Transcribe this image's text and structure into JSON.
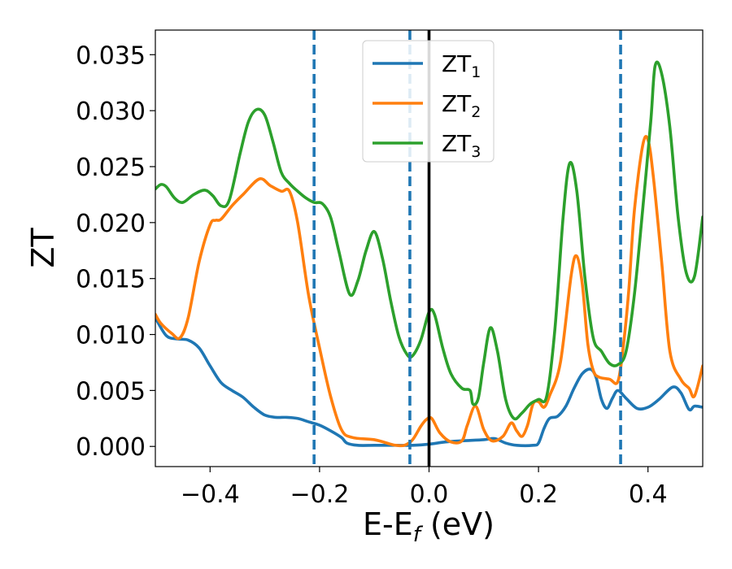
{
  "chart_data": {
    "type": "line",
    "xlabel_main": "E-E",
    "xlabel_sub": "f",
    "xlabel_tail": " (eV)",
    "ylabel": "ZT",
    "xlim": [
      -0.5,
      0.5
    ],
    "ylim": [
      -0.0018,
      0.0372
    ],
    "xticks": [
      -0.4,
      -0.2,
      0.0,
      0.2,
      0.4
    ],
    "xtick_labels": [
      "−0.4",
      "−0.2",
      "0.0",
      "0.2",
      "0.4"
    ],
    "yticks": [
      0.0,
      0.005,
      0.01,
      0.015,
      0.02,
      0.025,
      0.03,
      0.035
    ],
    "ytick_labels": [
      "0.000",
      "0.005",
      "0.010",
      "0.015",
      "0.020",
      "0.025",
      "0.030",
      "0.035"
    ],
    "grid": false,
    "legend_position": "top-center",
    "vlines_dashed": [
      -0.21,
      -0.035,
      0.35
    ],
    "vline_dashed_color": "#1f77b4",
    "vline_solid": 0.0,
    "vline_solid_color": "#000000",
    "series": [
      {
        "name_main": "ZT",
        "name_sub": "1",
        "color": "#1f77b4",
        "x": [
          -0.5,
          -0.48,
          -0.46,
          -0.44,
          -0.42,
          -0.4,
          -0.38,
          -0.36,
          -0.34,
          -0.32,
          -0.3,
          -0.28,
          -0.26,
          -0.24,
          -0.22,
          -0.2,
          -0.18,
          -0.16,
          -0.15,
          -0.13,
          -0.1,
          -0.06,
          -0.03,
          0.0,
          0.03,
          0.06,
          0.1,
          0.12,
          0.14,
          0.16,
          0.19,
          0.2,
          0.21,
          0.22,
          0.235,
          0.25,
          0.265,
          0.28,
          0.295,
          0.305,
          0.315,
          0.325,
          0.335,
          0.345,
          0.36,
          0.38,
          0.4,
          0.42,
          0.445,
          0.46,
          0.475,
          0.485,
          0.5
        ],
        "y": [
          0.0115,
          0.0099,
          0.0096,
          0.0095,
          0.0088,
          0.0072,
          0.0057,
          0.005,
          0.0044,
          0.0035,
          0.0028,
          0.0026,
          0.0026,
          0.0025,
          0.0022,
          0.0019,
          0.0014,
          0.0008,
          0.0003,
          0.0001,
          0.0001,
          0.0001,
          0.0001,
          0.0002,
          0.0004,
          0.0005,
          0.0006,
          0.0007,
          0.0003,
          0.0001,
          0.0001,
          0.0003,
          0.0016,
          0.0025,
          0.0027,
          0.0036,
          0.0052,
          0.0065,
          0.0069,
          0.0062,
          0.0042,
          0.0034,
          0.0043,
          0.005,
          0.0043,
          0.0034,
          0.0035,
          0.0042,
          0.0053,
          0.0048,
          0.0033,
          0.0036,
          0.0035
        ]
      },
      {
        "name_main": "ZT",
        "name_sub": "2",
        "color": "#ff7f0e",
        "x": [
          -0.5,
          -0.49,
          -0.47,
          -0.455,
          -0.44,
          -0.42,
          -0.4,
          -0.39,
          -0.38,
          -0.36,
          -0.34,
          -0.31,
          -0.29,
          -0.27,
          -0.255,
          -0.24,
          -0.22,
          -0.2,
          -0.18,
          -0.16,
          -0.14,
          -0.1,
          -0.07,
          -0.06,
          -0.045,
          -0.03,
          -0.015,
          -0.005,
          0.005,
          0.02,
          0.04,
          0.06,
          0.07,
          0.085,
          0.1,
          0.115,
          0.135,
          0.15,
          0.16,
          0.17,
          0.18,
          0.19,
          0.2,
          0.21,
          0.22,
          0.24,
          0.26,
          0.27,
          0.28,
          0.29,
          0.3,
          0.31,
          0.33,
          0.345,
          0.355,
          0.365,
          0.375,
          0.39,
          0.4,
          0.41,
          0.425,
          0.44,
          0.46,
          0.475,
          0.485,
          0.5
        ],
        "y": [
          0.0118,
          0.011,
          0.0101,
          0.0097,
          0.0115,
          0.0165,
          0.0198,
          0.0202,
          0.0203,
          0.0215,
          0.0225,
          0.0239,
          0.0233,
          0.0228,
          0.0228,
          0.02,
          0.0135,
          0.0088,
          0.0045,
          0.0015,
          0.0008,
          0.0006,
          0.0002,
          0.0001,
          0.0001,
          0.0006,
          0.0018,
          0.0024,
          0.0025,
          0.0012,
          0.0004,
          0.0005,
          0.0019,
          0.0036,
          0.0015,
          0.0005,
          0.0009,
          0.0021,
          0.0014,
          0.0009,
          0.0019,
          0.0038,
          0.004,
          0.0035,
          0.0045,
          0.0075,
          0.0154,
          0.017,
          0.0145,
          0.0092,
          0.0068,
          0.0062,
          0.006,
          0.0058,
          0.009,
          0.014,
          0.021,
          0.0268,
          0.0274,
          0.024,
          0.0165,
          0.0085,
          0.006,
          0.0052,
          0.0045,
          0.0072
        ]
      },
      {
        "name_main": "ZT",
        "name_sub": "3",
        "color": "#2ca02c",
        "x": [
          -0.5,
          -0.49,
          -0.48,
          -0.465,
          -0.45,
          -0.43,
          -0.41,
          -0.395,
          -0.38,
          -0.365,
          -0.345,
          -0.33,
          -0.315,
          -0.3,
          -0.285,
          -0.27,
          -0.255,
          -0.24,
          -0.225,
          -0.21,
          -0.195,
          -0.18,
          -0.165,
          -0.145,
          -0.13,
          -0.115,
          -0.1,
          -0.085,
          -0.07,
          -0.055,
          -0.04,
          -0.03,
          -0.015,
          0.0,
          0.01,
          0.025,
          0.04,
          0.06,
          0.075,
          0.08,
          0.09,
          0.1,
          0.112,
          0.125,
          0.14,
          0.155,
          0.17,
          0.185,
          0.2,
          0.215,
          0.23,
          0.245,
          0.257,
          0.27,
          0.285,
          0.3,
          0.315,
          0.33,
          0.345,
          0.36,
          0.375,
          0.39,
          0.405,
          0.413,
          0.425,
          0.44,
          0.455,
          0.47,
          0.485,
          0.5
        ],
        "y": [
          0.023,
          0.0234,
          0.0232,
          0.0222,
          0.0218,
          0.0225,
          0.0229,
          0.0224,
          0.0215,
          0.022,
          0.0262,
          0.029,
          0.0301,
          0.0296,
          0.0272,
          0.0245,
          0.0235,
          0.0228,
          0.0222,
          0.0218,
          0.0217,
          0.0205,
          0.0175,
          0.0136,
          0.0148,
          0.0175,
          0.0192,
          0.0168,
          0.013,
          0.0098,
          0.0082,
          0.0081,
          0.0095,
          0.012,
          0.0118,
          0.0088,
          0.0065,
          0.0052,
          0.005,
          0.0038,
          0.0043,
          0.0075,
          0.0106,
          0.0085,
          0.0042,
          0.0025,
          0.003,
          0.0038,
          0.0042,
          0.0045,
          0.0105,
          0.0205,
          0.0253,
          0.0228,
          0.015,
          0.0097,
          0.0085,
          0.0074,
          0.0073,
          0.0085,
          0.0135,
          0.021,
          0.029,
          0.034,
          0.0333,
          0.0285,
          0.0205,
          0.0155,
          0.0152,
          0.0205
        ]
      }
    ]
  }
}
